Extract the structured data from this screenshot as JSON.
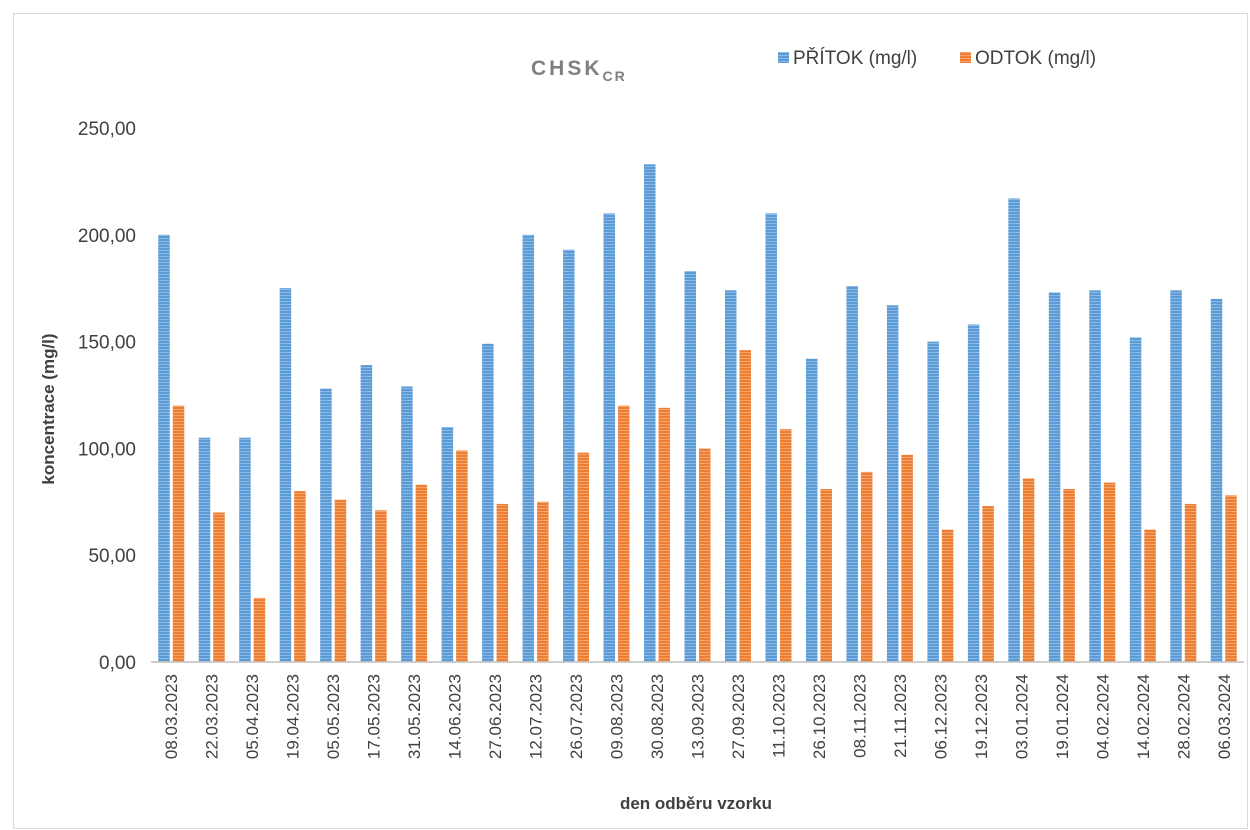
{
  "chart_data": {
    "type": "bar",
    "title": "CHSK",
    "title_subscript": "CR",
    "xlabel": "den odběru vzorku",
    "ylabel": "koncentrace (mg/l)",
    "ylim": [
      0,
      250
    ],
    "yticks": [
      "0,00",
      "50,00",
      "100,00",
      "150,00",
      "200,00",
      "250,00"
    ],
    "ytick_values": [
      0,
      50,
      100,
      150,
      200,
      250
    ],
    "grid": false,
    "legend_position": "top-right",
    "categories": [
      "08.03.2023",
      "22.03.2023",
      "05.04.2023",
      "19.04.2023",
      "05.05.2023",
      "17.05.2023",
      "31.05.2023",
      "14.06.2023",
      "27.06.2023",
      "12.07.2023",
      "26.07.2023",
      "09.08.2023",
      "30.08.2023",
      "13.09.2023",
      "27.09.2023",
      "11.10.2023",
      "26.10.2023",
      "08.11.2023",
      "21.11.2023",
      "06.12.2023",
      "19.12.2023",
      "03.01.2024",
      "19.01.2024",
      "04.02.2024",
      "14.02.2024",
      "28.02.2024",
      "06.03.2024"
    ],
    "series": [
      {
        "name": "PŘÍTOK (mg/l)",
        "color": "#5b9bd5",
        "values": [
          200,
          105,
          105,
          175,
          128,
          139,
          129,
          110,
          149,
          200,
          193,
          210,
          233,
          183,
          174,
          210,
          142,
          176,
          167,
          150,
          158,
          217,
          173,
          174,
          152,
          174,
          170
        ]
      },
      {
        "name": "ODTOK (mg/l)",
        "color": "#ed7d31",
        "values": [
          120,
          70,
          30,
          80,
          76,
          71,
          83,
          99,
          74,
          75,
          98,
          120,
          119,
          100,
          146,
          109,
          81,
          89,
          97,
          62,
          73,
          86,
          81,
          84,
          62,
          74,
          78
        ]
      }
    ]
  }
}
